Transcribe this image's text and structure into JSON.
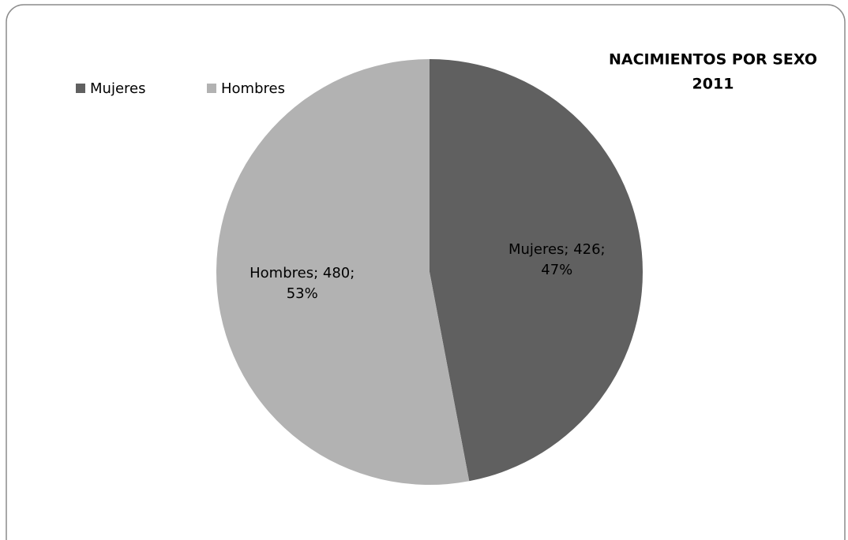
{
  "chart_data": {
    "type": "pie",
    "title": [
      "NACIMIENTOS POR SEXO",
      "2011"
    ],
    "categories": [
      "Mujeres",
      "Hombres"
    ],
    "values": [
      426,
      480
    ],
    "value_labels": [
      [
        "Mujeres; 426;",
        "47%"
      ],
      [
        "Hombres; 480;",
        "53%"
      ]
    ],
    "colors": [
      "#606060",
      "#b2b2b2"
    ],
    "legend": "top-left"
  }
}
